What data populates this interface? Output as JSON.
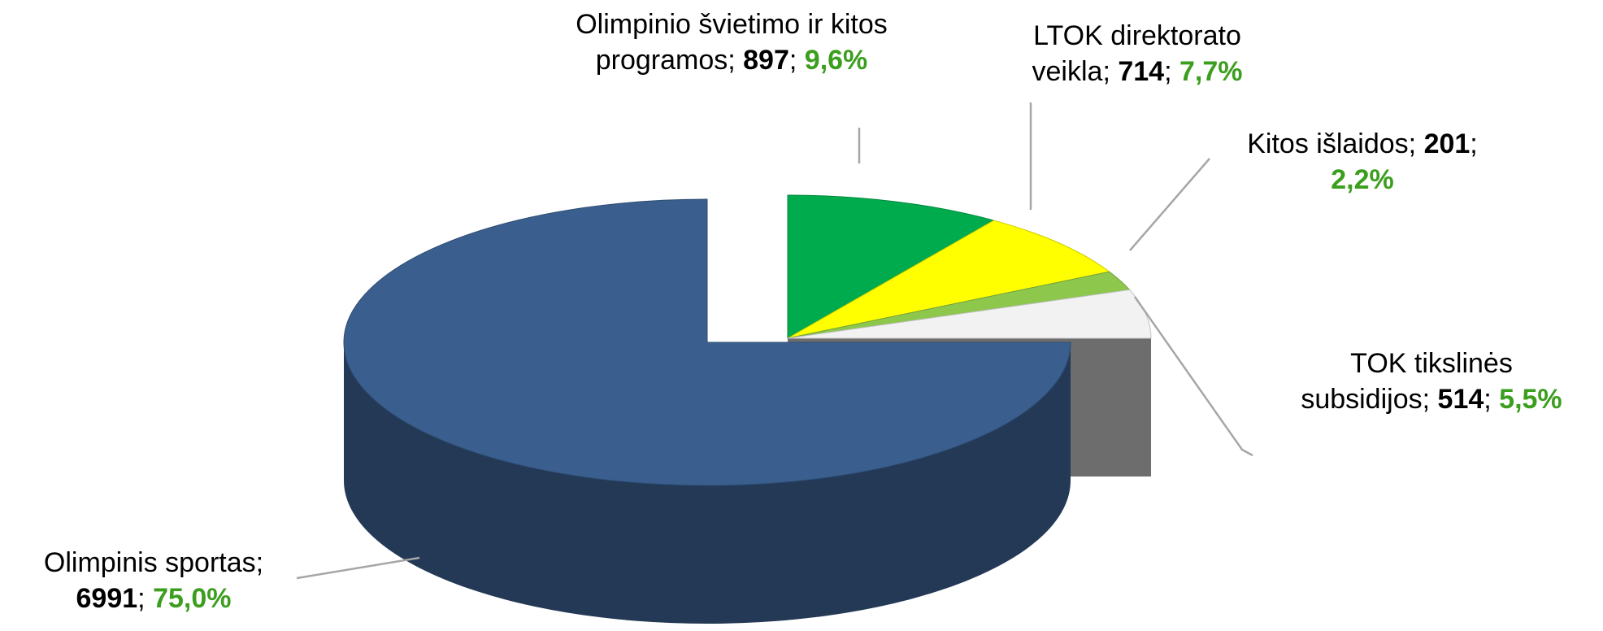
{
  "chart_data": {
    "type": "pie",
    "categories": [
      "Olimpinio švietimo ir kitos programos",
      "LTOK direktorato veikla",
      "Kitos išlaidos",
      "TOK tikslinės subsidijos",
      "Olimpinis sportas"
    ],
    "values": [
      897,
      714,
      201,
      514,
      6991
    ],
    "percentages": [
      9.6,
      7.7,
      2.2,
      5.5,
      75.0
    ],
    "percentage_labels": [
      "9,6%",
      "7,7%",
      "2,2%",
      "5,5%",
      "75,0%"
    ],
    "label_separator": ";",
    "colors": [
      "#00ab4e",
      "#ffff00",
      "#8dc84c",
      "#f2f2f2",
      "#3a5f8f"
    ],
    "exploded": [
      true,
      true,
      true,
      true,
      false
    ]
  }
}
